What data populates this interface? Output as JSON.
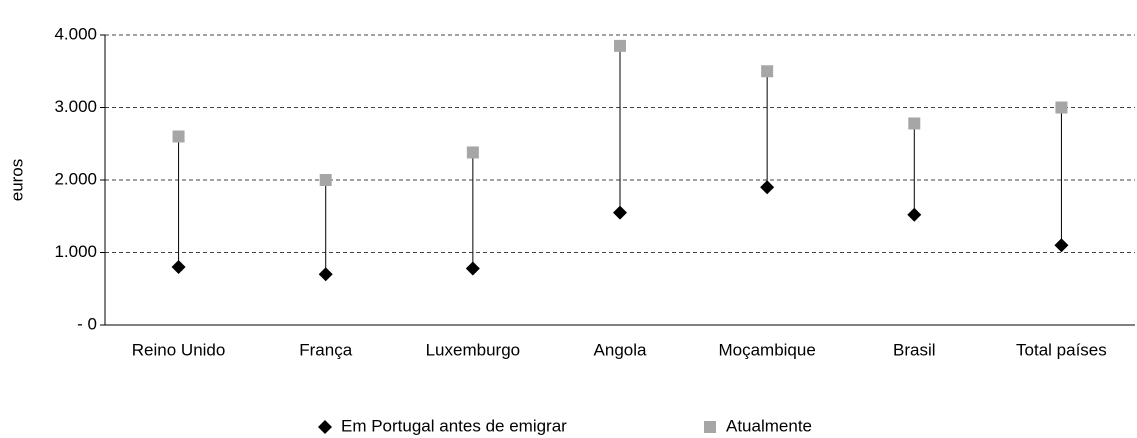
{
  "chart_data": {
    "type": "dumbbell",
    "y_label": "euros",
    "categories": [
      "Reino Unido",
      "França",
      "Luxemburgo",
      "Angola",
      "Moçambique",
      "Brasil",
      "Total países"
    ],
    "series": [
      {
        "name": "Em Portugal antes de emigrar",
        "color": "#000000",
        "marker": "diamond",
        "values": [
          800,
          700,
          780,
          1550,
          1900,
          1520,
          1100
        ]
      },
      {
        "name": "Atualmente",
        "color": "#a6a6a6",
        "marker": "square",
        "values": [
          2600,
          2000,
          2380,
          3850,
          3500,
          2780,
          3000
        ]
      }
    ],
    "ylim": [
      0,
      4000
    ],
    "yticks": [
      {
        "value": 0,
        "label": "- 0"
      },
      {
        "value": 1000,
        "label": "1.000"
      },
      {
        "value": 2000,
        "label": "2.000"
      },
      {
        "value": 3000,
        "label": "3.000"
      },
      {
        "value": 4000,
        "label": "4.000"
      }
    ],
    "grid": true,
    "legend": "bottom"
  }
}
